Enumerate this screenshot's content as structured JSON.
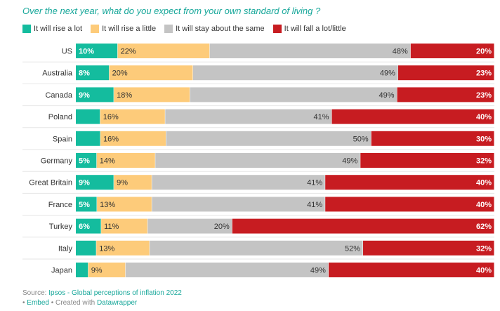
{
  "colors": {
    "title": "#17a79a",
    "rise_lot": "#14bc9e",
    "rise_little": "#fdcb7a",
    "stay_same": "#c4c4c4",
    "fall": "#c71c21",
    "link": "#17a79a"
  },
  "chart_data": {
    "type": "bar",
    "orientation": "horizontal",
    "stacked": true,
    "normalized": true,
    "title": "Over the next year, what do you expect from your own standard of living ?",
    "legend_position": "top-left",
    "categories": [
      "US",
      "Australia",
      "Canada",
      "Poland",
      "Spain",
      "Germany",
      "Great Britain",
      "France",
      "Turkey",
      "Italy",
      "Japan"
    ],
    "series": [
      {
        "name": "It will rise a lot",
        "color": "#14bc9e",
        "label_color": "#ffffff",
        "values": [
          10,
          8,
          9,
          6,
          6,
          5,
          9,
          5,
          6,
          5,
          3
        ],
        "labels": [
          "10%",
          "8%",
          "9%",
          "",
          "",
          "5%",
          "9%",
          "5%",
          "6%",
          "",
          ""
        ]
      },
      {
        "name": "It will rise a little",
        "color": "#fdcb7a",
        "label_color": "#333333",
        "values": [
          22,
          20,
          18,
          16,
          16,
          14,
          9,
          13,
          11,
          13,
          9
        ],
        "labels": [
          "22%",
          "20%",
          "18%",
          "16%",
          "16%",
          "14%",
          "9%",
          "13%",
          "11%",
          "13%",
          "9%"
        ]
      },
      {
        "name": "It will stay about the same",
        "color": "#c4c4c4",
        "label_color": "#333333",
        "values": [
          48,
          49,
          49,
          41,
          50,
          49,
          41,
          41,
          20,
          52,
          49
        ],
        "labels": [
          "48%",
          "49%",
          "49%",
          "41%",
          "50%",
          "49%",
          "41%",
          "41%",
          "20%",
          "52%",
          "49%"
        ]
      },
      {
        "name": "It will fall a lot/little",
        "color": "#c71c21",
        "label_color": "#ffffff",
        "values": [
          20,
          23,
          23,
          40,
          30,
          32,
          40,
          40,
          62,
          32,
          40
        ],
        "labels": [
          "20%",
          "23%",
          "23%",
          "40%",
          "30%",
          "32%",
          "40%",
          "40%",
          "62%",
          "32%",
          "40%"
        ]
      }
    ]
  },
  "footer": {
    "source_prefix": "Source: ",
    "source_link": "Ipsos - Global perceptions of inflation 2022",
    "embed": "Embed",
    "created_prefix": " • Created with ",
    "created_link": "Datawrapper",
    "bullet": "• "
  }
}
